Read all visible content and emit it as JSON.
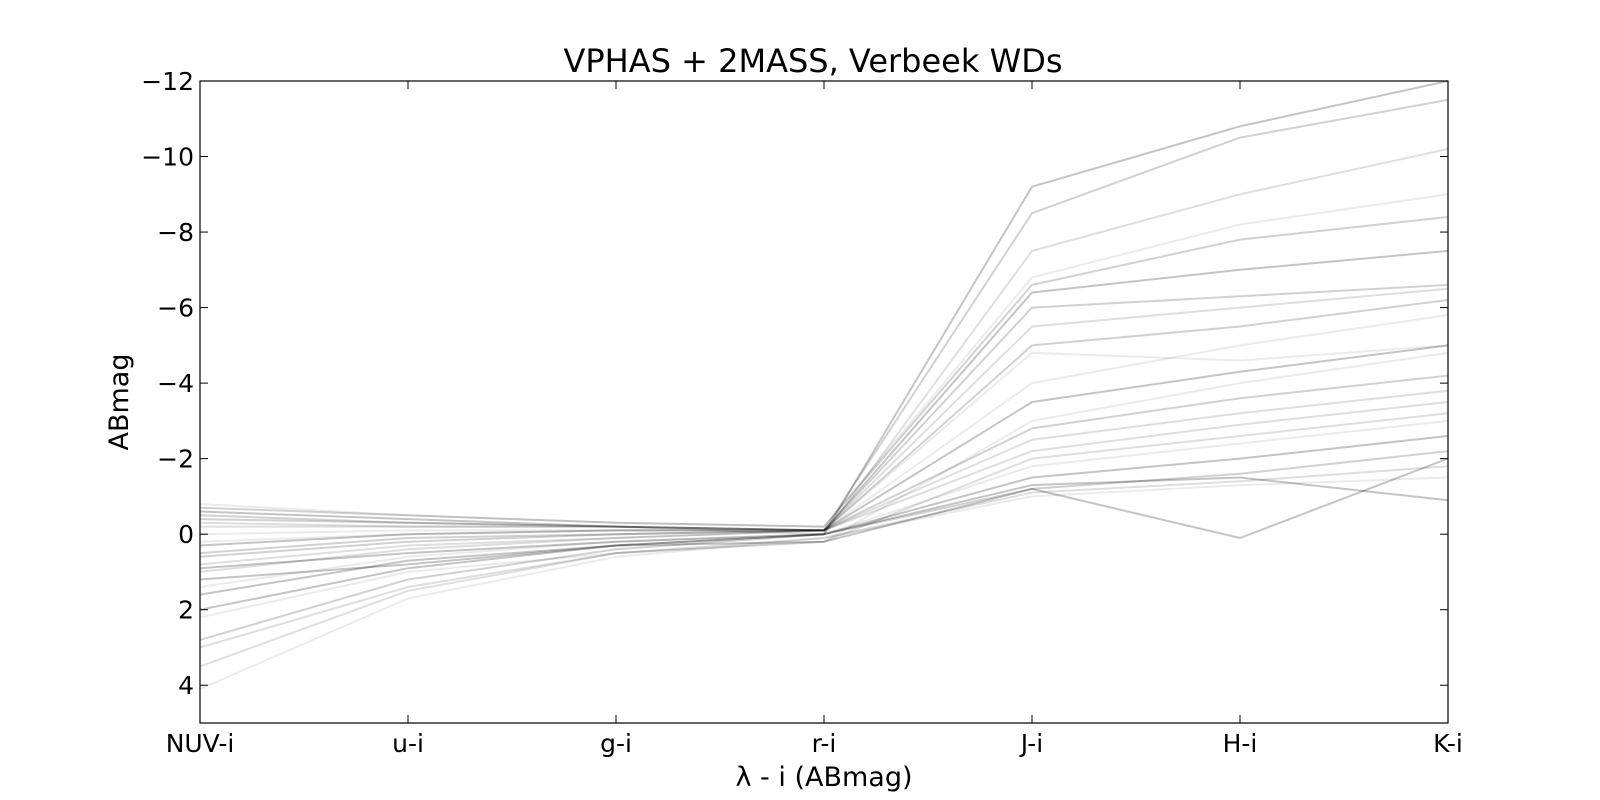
{
  "chart_data": {
    "type": "line",
    "title": "VPHAS + 2MASS, Verbeek WDs",
    "xlabel": "λ - i (ABmag)",
    "ylabel": "ABmag",
    "categories": [
      "NUV-i",
      "u-i",
      "g-i",
      "r-i",
      "J-i",
      "H-i",
      "K-i"
    ],
    "y_ticks": [
      -12,
      -10,
      -8,
      -6,
      -4,
      -2,
      0,
      2,
      4
    ],
    "y_tick_labels": [
      "−12",
      "−10",
      "−8",
      "−6",
      "−4",
      "−2",
      "0",
      "2",
      "4"
    ],
    "ylim": [
      5,
      -12
    ],
    "y_inverted": true,
    "grid": false,
    "line_color": "#000000",
    "series": [
      {
        "values": [
          4.1,
          1.7,
          0.6,
          0.1,
          -1.0,
          -1.3,
          -1.5
        ]
      },
      {
        "values": [
          3.5,
          1.5,
          0.5,
          0.1,
          -1.1,
          -1.4,
          -1.8
        ]
      },
      {
        "values": [
          2.8,
          1.2,
          0.4,
          0.0,
          -1.2,
          -1.6,
          -2.2
        ]
      },
      {
        "values": [
          2.0,
          0.9,
          0.3,
          0.0,
          -1.5,
          -2.0,
          -2.6
        ]
      },
      {
        "values": [
          1.4,
          0.6,
          0.2,
          0.0,
          -1.8,
          -2.4,
          -3.0
        ]
      },
      {
        "values": [
          1.0,
          0.4,
          0.1,
          -0.1,
          -2.2,
          -2.9,
          -3.5
        ]
      },
      {
        "values": [
          0.6,
          0.2,
          0.0,
          -0.1,
          -2.8,
          -3.6,
          -4.2
        ]
      },
      {
        "values": [
          0.3,
          0.0,
          -0.1,
          -0.1,
          -3.5,
          -4.3,
          -5.0
        ]
      },
      {
        "values": [
          0.0,
          -0.1,
          -0.1,
          -0.1,
          -4.8,
          -4.6,
          -5.0
        ]
      },
      {
        "values": [
          -0.2,
          -0.2,
          -0.2,
          -0.1,
          -5.5,
          -6.0,
          -6.5
        ]
      },
      {
        "values": [
          -0.4,
          -0.3,
          -0.2,
          -0.1,
          -6.0,
          -6.3,
          -6.6
        ]
      },
      {
        "values": [
          -0.6,
          -0.4,
          -0.2,
          -0.1,
          -6.4,
          -7.0,
          -7.5
        ]
      },
      {
        "values": [
          -0.8,
          -0.5,
          -0.3,
          -0.2,
          -6.8,
          -8.2,
          -9.0
        ]
      },
      {
        "values": [
          -0.3,
          -0.2,
          -0.2,
          0.0,
          -7.5,
          -9.0,
          -10.2
        ]
      },
      {
        "values": [
          0.5,
          0.1,
          0.0,
          -0.1,
          -8.5,
          -10.5,
          -11.5
        ]
      },
      {
        "values": [
          1.2,
          0.8,
          0.3,
          0.2,
          -1.2,
          0.1,
          -2.0
        ]
      },
      {
        "values": [
          2.2,
          1.0,
          0.5,
          0.2,
          -3.0,
          -4.0,
          -4.8
        ]
      },
      {
        "values": [
          0.8,
          0.3,
          0.1,
          -0.1,
          -2.5,
          -3.2,
          -3.8
        ]
      },
      {
        "values": [
          -0.5,
          -0.3,
          -0.2,
          -0.1,
          -5.0,
          -5.5,
          -6.2
        ]
      },
      {
        "values": [
          1.6,
          0.7,
          0.3,
          0.0,
          -9.2,
          -10.8,
          -12.0
        ]
      },
      {
        "values": [
          0.2,
          0.0,
          -0.1,
          -0.1,
          -4.0,
          -5.0,
          -5.8
        ]
      },
      {
        "values": [
          3.0,
          1.4,
          0.5,
          0.2,
          -2.0,
          -2.6,
          -3.2
        ]
      },
      {
        "values": [
          -0.7,
          -0.5,
          -0.3,
          -0.2,
          -6.6,
          -7.8,
          -8.4
        ]
      },
      {
        "values": [
          0.9,
          0.5,
          0.2,
          0.0,
          -1.3,
          -1.5,
          -0.9
        ]
      }
    ]
  }
}
